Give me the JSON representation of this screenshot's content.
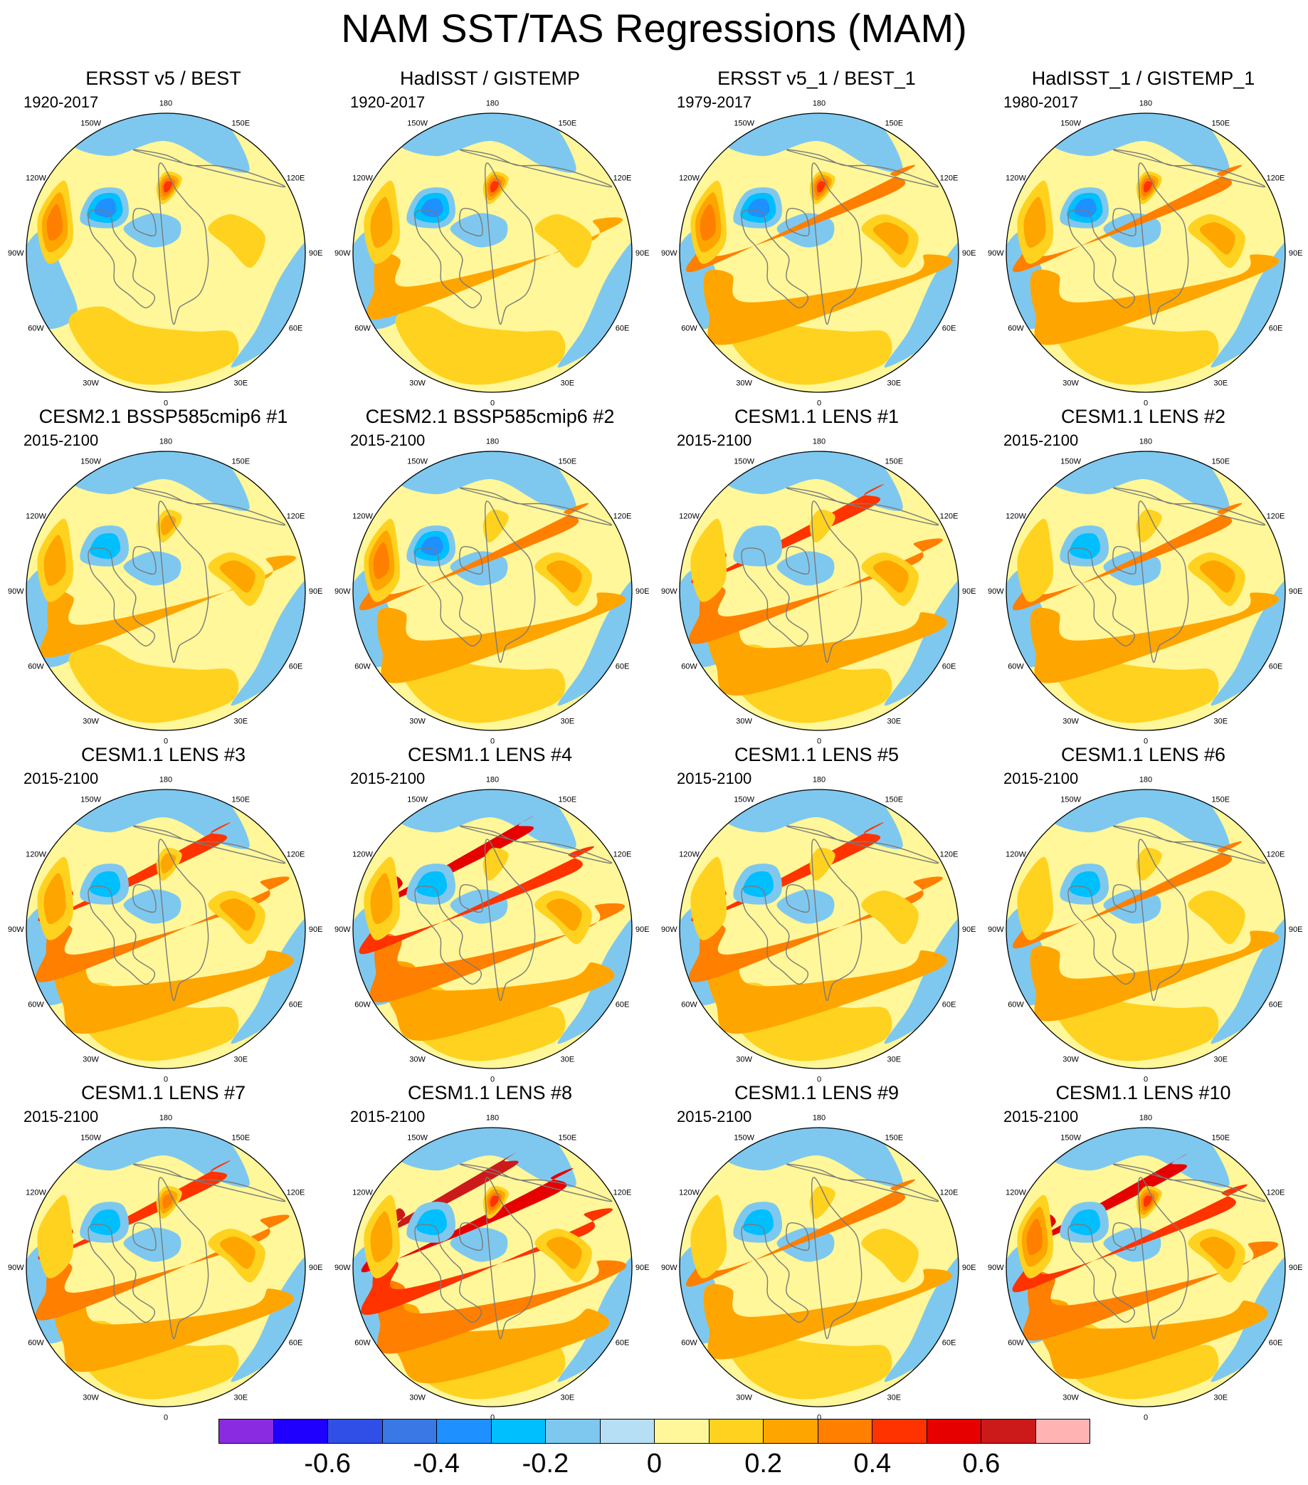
{
  "title": "NAM SST/TAS Regressions (MAM)",
  "lon_labels": [
    "180",
    "150E",
    "120E",
    "90E",
    "60E",
    "30E",
    "0",
    "30W",
    "60W",
    "90W",
    "120W",
    "150W"
  ],
  "panels": [
    {
      "title": "ERSST v5 / BEST",
      "period": "1920-2017",
      "pacific": 0.17,
      "atlantic_low": -0.33,
      "atlantic_high": 0.3,
      "europe": 0.45,
      "asia": 0.18,
      "arctic": 0.05
    },
    {
      "title": "HadISST / GISTEMP",
      "period": "1920-2017",
      "pacific": 0.2,
      "atlantic_low": -0.3,
      "atlantic_high": 0.28,
      "europe": 0.45,
      "asia": 0.15,
      "arctic": -0.05
    },
    {
      "title": "ERSST v5_1 / BEST_1",
      "period": "1979-2017",
      "pacific": 0.3,
      "atlantic_low": -0.35,
      "atlantic_high": 0.3,
      "europe": 0.45,
      "asia": 0.2,
      "arctic": 0.05
    },
    {
      "title": "HadISST_1 / GISTEMP_1",
      "period": "1980-2017",
      "pacific": 0.3,
      "atlantic_low": -0.3,
      "atlantic_high": 0.25,
      "europe": 0.4,
      "asia": 0.2,
      "arctic": 0.0
    },
    {
      "title": "CESM2.1 BSSP585cmip6 #1",
      "period": "2015-2100",
      "pacific": 0.28,
      "atlantic_low": -0.2,
      "atlantic_high": 0.22,
      "europe": 0.2,
      "asia": 0.2,
      "arctic": 0.05
    },
    {
      "title": "CESM2.1 BSSP585cmip6 #2",
      "period": "2015-2100",
      "pacific": 0.38,
      "atlantic_low": -0.32,
      "atlantic_high": 0.3,
      "europe": 0.15,
      "asia": 0.2,
      "arctic": 0.05
    },
    {
      "title": "CESM1.1 LENS #1",
      "period": "2015-2100",
      "pacific": 0.42,
      "atlantic_low": -0.12,
      "atlantic_high": 0.12,
      "europe": 0.15,
      "asia": 0.2,
      "arctic": -0.1
    },
    {
      "title": "CESM1.1 LENS #2",
      "period": "2015-2100",
      "pacific": 0.38,
      "atlantic_low": -0.2,
      "atlantic_high": 0.1,
      "europe": 0.12,
      "asia": 0.2,
      "arctic": -0.1
    },
    {
      "title": "CESM1.1 LENS #3",
      "period": "2015-2100",
      "pacific": 0.45,
      "atlantic_low": -0.25,
      "atlantic_high": 0.25,
      "europe": 0.2,
      "asia": 0.2,
      "arctic": -0.1
    },
    {
      "title": "CESM1.1 LENS #4",
      "period": "2015-2100",
      "pacific": 0.5,
      "atlantic_low": -0.25,
      "atlantic_high": 0.22,
      "europe": 0.15,
      "asia": 0.2,
      "arctic": -0.12
    },
    {
      "title": "CESM1.1 LENS #5",
      "period": "2015-2100",
      "pacific": 0.42,
      "atlantic_low": -0.2,
      "atlantic_high": 0.12,
      "europe": 0.15,
      "asia": 0.18,
      "arctic": -0.12
    },
    {
      "title": "CESM1.1 LENS #6",
      "period": "2015-2100",
      "pacific": 0.38,
      "atlantic_low": -0.2,
      "atlantic_high": 0.12,
      "europe": 0.12,
      "asia": 0.18,
      "arctic": -0.15
    },
    {
      "title": "CESM1.1 LENS #7",
      "period": "2015-2100",
      "pacific": 0.42,
      "atlantic_low": -0.2,
      "atlantic_high": 0.12,
      "europe": 0.3,
      "asia": 0.2,
      "arctic": -0.1
    },
    {
      "title": "CESM1.1 LENS #8",
      "period": "2015-2100",
      "pacific": 0.62,
      "atlantic_low": -0.2,
      "atlantic_high": 0.22,
      "europe": 0.45,
      "asia": 0.2,
      "arctic": -0.05
    },
    {
      "title": "CESM1.1 LENS #9",
      "period": "2015-2100",
      "pacific": 0.3,
      "atlantic_low": -0.22,
      "atlantic_high": 0.1,
      "europe": 0.1,
      "asia": 0.05,
      "arctic": -0.15
    },
    {
      "title": "CESM1.1 LENS #10",
      "period": "2015-2100",
      "pacific": 0.55,
      "atlantic_low": -0.25,
      "atlantic_high": 0.3,
      "europe": 0.42,
      "asia": 0.2,
      "arctic": -0.12
    }
  ],
  "colorbar": {
    "colors": [
      "#8a2be2",
      "#1f00ff",
      "#2f4fe6",
      "#3a78e6",
      "#1e90ff",
      "#00bfff",
      "#7ec8ef",
      "#b6dff5",
      "#fff799",
      "#ffd21f",
      "#ffa500",
      "#ff7f00",
      "#ff3300",
      "#e60000",
      "#cc1a1a",
      "#ffb3b3"
    ],
    "levels": [
      -0.7,
      -0.6,
      -0.5,
      -0.4,
      -0.3,
      -0.2,
      -0.1,
      0,
      0.1,
      0.2,
      0.3,
      0.4,
      0.5,
      0.6,
      0.7
    ],
    "tick_values": [
      -0.6,
      -0.4,
      -0.2,
      0,
      0.2,
      0.4,
      0.6
    ],
    "tick_labels": [
      "-0.6",
      "-0.4",
      "-0.2",
      "0",
      "0.2",
      "0.4",
      "0.6"
    ]
  }
}
